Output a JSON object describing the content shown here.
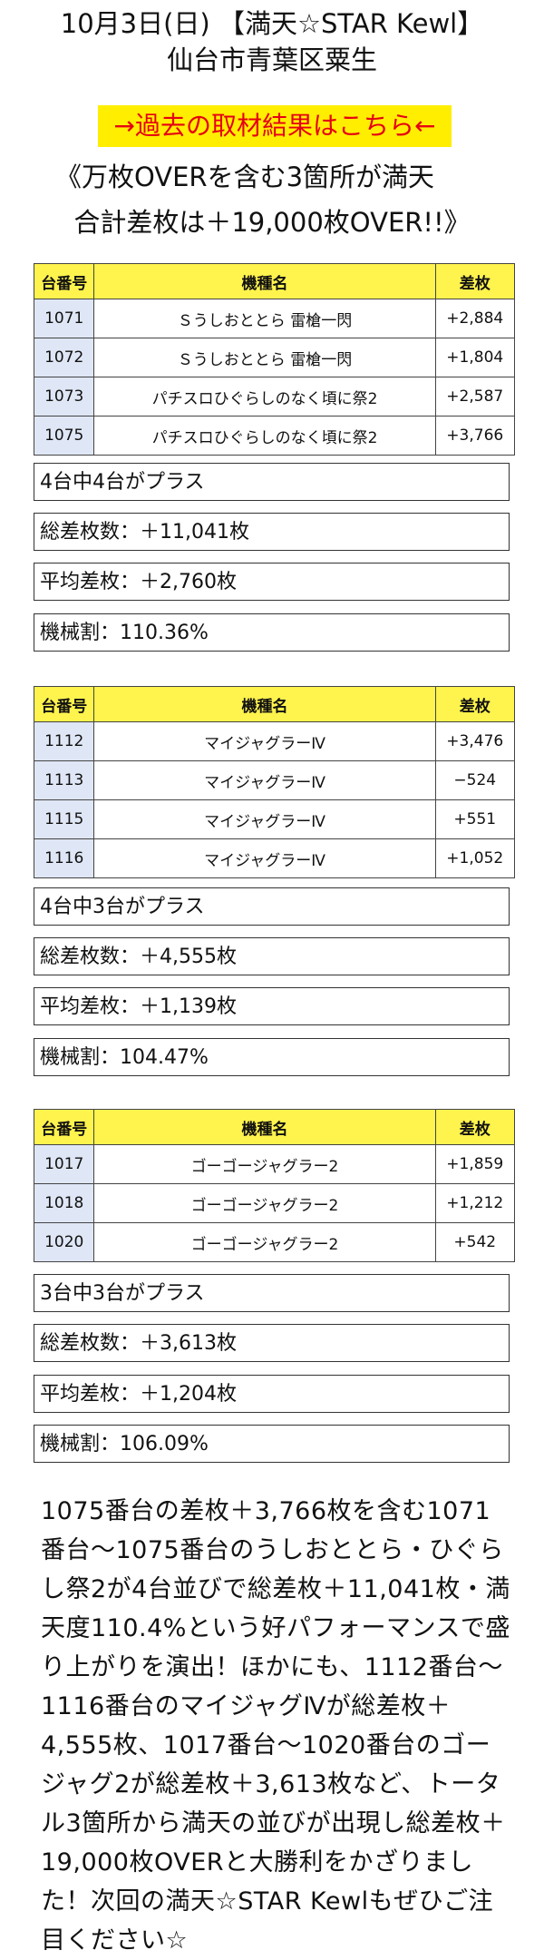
{
  "header": {
    "line1": "10月3日(日) 【満天☆STAR Kewl】",
    "line2": "仙台市青葉区粟生"
  },
  "banner": {
    "label": "→過去の取材結果はこちら←"
  },
  "headline": {
    "line1": "《万枚OVERを含む3箇所が満天",
    "line2": "合計差枚は＋19,000枚OVER!!》"
  },
  "table_headers": {
    "no": "台番号",
    "name": "機種名",
    "diff": "差枚"
  },
  "groups": [
    {
      "rows": [
        {
          "no": "1071",
          "name": "Ｓうしおととら 雷槍一閃",
          "diff": "+2,884"
        },
        {
          "no": "1072",
          "name": "Ｓうしおととら 雷槍一閃",
          "diff": "+1,804"
        },
        {
          "no": "1073",
          "name": "パチスロひぐらしのなく頃に祭2",
          "diff": "+2,587"
        },
        {
          "no": "1075",
          "name": "パチスロひぐらしのなく頃に祭2",
          "diff": "+3,766"
        }
      ],
      "plus": "4台中4台がプラス",
      "total": "総差枚数：＋11,041枚",
      "avg": "平均差枚：＋2,760枚",
      "rate": "機械割：110.36%"
    },
    {
      "rows": [
        {
          "no": "1112",
          "name": "マイジャグラーⅣ",
          "diff": "+3,476"
        },
        {
          "no": "1113",
          "name": "マイジャグラーⅣ",
          "diff": "−524"
        },
        {
          "no": "1115",
          "name": "マイジャグラーⅣ",
          "diff": "+551"
        },
        {
          "no": "1116",
          "name": "マイジャグラーⅣ",
          "diff": "+1,052"
        }
      ],
      "plus": "4台中3台がプラス",
      "total": "総差枚数：＋4,555枚",
      "avg": "平均差枚：＋1,139枚",
      "rate": "機械割：104.47%"
    },
    {
      "rows": [
        {
          "no": "1017",
          "name": "ゴーゴージャグラー2",
          "diff": "+1,859"
        },
        {
          "no": "1018",
          "name": "ゴーゴージャグラー2",
          "diff": "+1,212"
        },
        {
          "no": "1020",
          "name": "ゴーゴージャグラー2",
          "diff": "+542"
        }
      ],
      "plus": "3台中3台がプラス",
      "total": "総差枚数：＋3,613枚",
      "avg": "平均差枚：＋1,204枚",
      "rate": "機械割：106.09%"
    }
  ],
  "body": {
    "l1": "1075番台の差枚＋3,766枚を含む1071",
    "l2": "番台〜1075番台のうしおととら・ひぐら",
    "l3": "し祭2が4台並びで総差枚＋11,041枚・満",
    "l4": "天度110.4%という好パフォーマンスで盛",
    "l5": "り上がりを演出！ほかにも、1112番台〜",
    "l6": "1116番台のマイジャグⅣが総差枚＋",
    "l7": "4,555枚、1017番台〜1020番台のゴー",
    "l8": "ジャグ2が総差枚＋3,613枚など、トータ",
    "l9": "ル3箇所から満天の並びが出現し総差枚＋",
    "l10": "19,000枚OVERと大勝利をかざりまし",
    "l11": "た！次回の満天☆STAR Kewlもぜひご注",
    "l12": "目ください☆"
  }
}
